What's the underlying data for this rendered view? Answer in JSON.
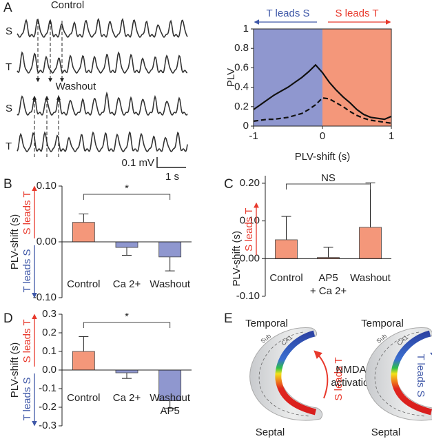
{
  "panel_labels": [
    "A",
    "B",
    "C",
    "D",
    "E"
  ],
  "traces": {
    "titles": [
      "Control",
      "Washout"
    ],
    "row_labels": [
      "S",
      "T",
      "S",
      "T"
    ],
    "scale_voltage": "0.1 mV",
    "scale_time": "1 s"
  },
  "chart_data": [
    {
      "type": "line",
      "xlabel": "PLV-shift (s)",
      "ylabel": "PLV",
      "x": [
        -1,
        -0.9,
        -0.8,
        -0.7,
        -0.6,
        -0.5,
        -0.4,
        -0.3,
        -0.2,
        -0.1,
        0,
        0.1,
        0.2,
        0.3,
        0.4,
        0.5,
        0.6,
        0.7,
        0.8,
        0.9,
        1
      ],
      "series": [
        {
          "color": "#111111",
          "dash": false,
          "values": [
            0.17,
            0.22,
            0.27,
            0.32,
            0.36,
            0.4,
            0.45,
            0.5,
            0.56,
            0.63,
            0.55,
            0.45,
            0.37,
            0.3,
            0.24,
            0.17,
            0.12,
            0.09,
            0.08,
            0.07,
            0.1
          ]
        },
        {
          "color": "#111111",
          "dash": true,
          "values": [
            0.05,
            0.06,
            0.07,
            0.07,
            0.08,
            0.09,
            0.11,
            0.13,
            0.17,
            0.22,
            0.29,
            0.28,
            0.24,
            0.2,
            0.15,
            0.11,
            0.08,
            0.06,
            0.05,
            0.04,
            0.03
          ]
        }
      ],
      "regions": [
        {
          "label": "T leads S",
          "color": "#3f58a8",
          "fill": "#8f97cf",
          "from": -1,
          "to": 0
        },
        {
          "label": "S leads T",
          "color": "#e8392c",
          "fill": "#f4977a",
          "from": 0,
          "to": 1
        }
      ],
      "xlim": [
        -1,
        1
      ],
      "xticks": [
        -1,
        0,
        1
      ],
      "ylim": [
        0,
        1
      ],
      "yticks": [
        0,
        0.2,
        0.4,
        0.6,
        0.8,
        1
      ]
    },
    {
      "type": "bar",
      "ylabel": "PLV-shift (s)",
      "categories": [
        "Control",
        "Ca 2+",
        "Washout"
      ],
      "values": [
        0.035,
        -0.01,
        -0.027
      ],
      "errors": [
        0.015,
        0.014,
        0.025
      ],
      "colors": [
        "#f4977a",
        "#8f97cf",
        "#8f97cf"
      ],
      "direction_labels": [
        {
          "label": "S leads T",
          "color": "#e8392c"
        },
        {
          "label": "T leads S",
          "color": "#3f58a8"
        }
      ],
      "significance": "*",
      "ylim": [
        -0.1,
        0.1
      ],
      "yticks": [
        {
          "value": -0.1,
          "label": "-0.10"
        },
        {
          "value": 0,
          "label": "0.00"
        },
        {
          "value": 0.1,
          "label": "0.10"
        }
      ]
    },
    {
      "type": "bar",
      "ylabel": "PLV-shift (s)",
      "categories": [
        "Control",
        [
          "AP5",
          "+ Ca 2+"
        ],
        "Washout"
      ],
      "values": [
        0.05,
        0.003,
        0.083
      ],
      "errors": [
        0.062,
        0.027,
        0.118
      ],
      "colors": [
        "#f4977a",
        "#f4977a",
        "#f4977a"
      ],
      "direction_labels": [
        {
          "label": "S leads T",
          "color": "#e8392c"
        }
      ],
      "significance": "NS",
      "ylim": [
        -0.1,
        0.22
      ],
      "yticks": [
        {
          "value": -0.1,
          "label": "-0.10"
        },
        {
          "value": 0,
          "label": "0.00"
        },
        {
          "value": 0.1,
          "label": "0.10"
        },
        {
          "value": 0.2,
          "label": "0.20"
        }
      ]
    },
    {
      "type": "bar",
      "ylabel": "PLV-shift (s)",
      "categories": [
        "Control",
        "Ca 2+",
        [
          "Washout",
          "AP5"
        ]
      ],
      "values": [
        0.1,
        -0.015,
        -0.165
      ],
      "errors": [
        0.08,
        0.03,
        0.04
      ],
      "colors": [
        "#f4977a",
        "#8f97cf",
        "#8f97cf"
      ],
      "direction_labels": [
        {
          "label": "S leads T",
          "color": "#e8392c"
        },
        {
          "label": "T leads S",
          "color": "#3f58a8"
        }
      ],
      "significance": "*",
      "ylim": [
        -0.3,
        0.3
      ],
      "yticks": [
        -0.3,
        -0.2,
        -0.1,
        {
          "value": 0,
          "label": "0.0"
        },
        0.1,
        0.2,
        0.3
      ]
    }
  ],
  "diagram": {
    "left": {
      "top": "Temporal",
      "bottom": "Septal",
      "sub": "Sub",
      "ca1": "CA1",
      "arrow_label": "S leads T"
    },
    "middle": [
      "NMDAr",
      "activation"
    ],
    "right": {
      "top": "Temporal",
      "bottom": "Septal",
      "sub": "Sub",
      "ca1": "CA1",
      "arrow_label": "T leads S"
    }
  }
}
